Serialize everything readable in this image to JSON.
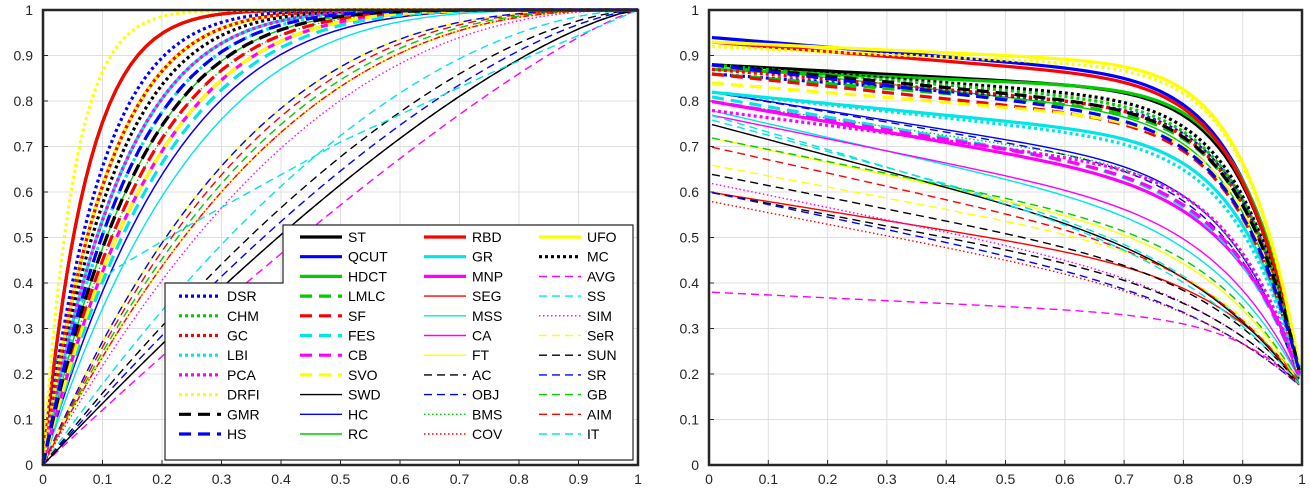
{
  "chart_data": [
    {
      "type": "line",
      "title": "",
      "xlabel": "",
      "ylabel": "",
      "xlim": [
        0,
        1
      ],
      "ylim": [
        0,
        1
      ],
      "x_ticks": [
        "0",
        "0.1",
        "0.2",
        "0.3",
        "0.4",
        "0.5",
        "0.6",
        "0.7",
        "0.8",
        "0.9",
        "1"
      ],
      "y_ticks": [
        "0",
        "0.1",
        "0.2",
        "0.3",
        "0.4",
        "0.5",
        "0.6",
        "0.7",
        "0.8",
        "0.9",
        "1"
      ],
      "grid": true,
      "legend_position": "bottom-right",
      "legend": [
        [
          "ST",
          "QCUT",
          "HDCT",
          "RBD",
          "GR",
          "MNP",
          "UFO",
          "MC",
          "AVG"
        ],
        [
          "DSR",
          "LMLC",
          "SEG",
          "SS"
        ],
        [
          "CHM",
          "SF",
          "MSS",
          "SIM"
        ],
        [
          "GC",
          "FES",
          "CA",
          "SeR"
        ],
        [
          "LBI",
          "CB",
          "FT",
          "SUN"
        ],
        [
          "PCA",
          "SVO",
          "AC",
          "SR"
        ],
        [
          "DRFI",
          "SWD",
          "OBJ",
          "GB"
        ],
        [
          "GMR",
          "HC",
          "BMS",
          "AIM"
        ],
        [
          "HS",
          "RC",
          "COV",
          "IT"
        ]
      ]
    },
    {
      "type": "line",
      "title": "",
      "xlabel": "",
      "ylabel": "",
      "xlim": [
        0,
        1
      ],
      "ylim": [
        0,
        1
      ],
      "x_ticks": [
        "0",
        "0.1",
        "0.2",
        "0.3",
        "0.4",
        "0.5",
        "0.6",
        "0.7",
        "0.8",
        "0.9",
        "1"
      ],
      "y_ticks": [
        "0",
        "0.1",
        "0.2",
        "0.3",
        "0.4",
        "0.5",
        "0.6",
        "0.7",
        "0.8",
        "0.9",
        "1"
      ],
      "grid": true
    }
  ],
  "series": [
    {
      "name": "ST",
      "color": "#000000",
      "style": "solid",
      "bold": true,
      "roc": 0.93,
      "pr_start": 0.88,
      "pr_knee": 0.9,
      "pr_end": 0.17
    },
    {
      "name": "QCUT",
      "color": "#0000ff",
      "style": "solid",
      "bold": true,
      "roc": 0.9,
      "pr_start": 0.94,
      "pr_knee": 0.86,
      "pr_end": 0.17
    },
    {
      "name": "HDCT",
      "color": "#00cc00",
      "style": "solid",
      "bold": true,
      "roc": 0.93,
      "pr_start": 0.87,
      "pr_knee": 0.92,
      "pr_end": 0.18
    },
    {
      "name": "RBD",
      "color": "#ff0000",
      "style": "solid",
      "bold": true,
      "roc": 0.93,
      "pr_start": 0.93,
      "pr_knee": 0.86,
      "pr_end": 0.17
    },
    {
      "name": "GR",
      "color": "#00e5e5",
      "style": "solid",
      "bold": true,
      "roc": 0.88,
      "pr_start": 0.82,
      "pr_knee": 0.8,
      "pr_end": 0.18
    },
    {
      "name": "MNP",
      "color": "#ff00ff",
      "style": "solid",
      "bold": true,
      "roc": 0.84,
      "pr_start": 0.8,
      "pr_knee": 0.62,
      "pr_end": 0.2
    },
    {
      "name": "UFO",
      "color": "#ffff00",
      "style": "solid",
      "bold": true,
      "roc": 0.9,
      "pr_start": 0.93,
      "pr_knee": 0.92,
      "pr_end": 0.18
    },
    {
      "name": "MC",
      "color": "#000000",
      "style": "dotted",
      "bold": true,
      "roc": 0.89,
      "pr_start": 0.88,
      "pr_knee": 0.86,
      "pr_end": 0.17
    },
    {
      "name": "AVG",
      "color": "#ff00ff",
      "style": "dashed",
      "bold": false,
      "roc": 0.55,
      "pr_start": 0.38,
      "pr_knee": 0.7,
      "pr_end": 0.17
    },
    {
      "name": "DSR",
      "color": "#0000ff",
      "style": "dotted",
      "bold": true,
      "roc": 0.91,
      "pr_start": 0.86,
      "pr_knee": 0.86,
      "pr_end": 0.17
    },
    {
      "name": "LMLC",
      "color": "#00cc00",
      "style": "dashed",
      "bold": true,
      "roc": 0.86,
      "pr_start": 0.86,
      "pr_knee": 0.84,
      "pr_end": 0.18
    },
    {
      "name": "SEG",
      "color": "#ff0000",
      "style": "solid",
      "bold": false,
      "roc": 0.72,
      "pr_start": 0.6,
      "pr_knee": 0.5,
      "pr_end": 0.18
    },
    {
      "name": "SS",
      "color": "#00e5e5",
      "style": "dashed",
      "bold": false,
      "roc": 0.65,
      "pr_start": 0.76,
      "pr_knee": 0.4,
      "pr_end": 0.17
    },
    {
      "name": "CHM",
      "color": "#00cc00",
      "style": "dotted",
      "bold": true,
      "roc": 0.88,
      "pr_start": 0.88,
      "pr_knee": 0.84,
      "pr_end": 0.18
    },
    {
      "name": "SF",
      "color": "#ff0000",
      "style": "dashed",
      "bold": true,
      "roc": 0.85,
      "pr_start": 0.86,
      "pr_knee": 0.8,
      "pr_end": 0.17
    },
    {
      "name": "MSS",
      "color": "#00e5e5",
      "style": "solid",
      "bold": false,
      "roc": 0.8,
      "pr_start": 0.78,
      "pr_knee": 0.5,
      "pr_end": 0.18
    },
    {
      "name": "SIM",
      "color": "#ff00ff",
      "style": "dotted",
      "bold": false,
      "roc": 0.7,
      "pr_start": 0.62,
      "pr_knee": 0.4,
      "pr_end": 0.17
    },
    {
      "name": "GC",
      "color": "#ff0000",
      "style": "dotted",
      "bold": true,
      "roc": 0.9,
      "pr_start": 0.87,
      "pr_knee": 0.84,
      "pr_end": 0.17
    },
    {
      "name": "FES",
      "color": "#00e5e5",
      "style": "dashed",
      "bold": true,
      "roc": 0.83,
      "pr_start": 0.81,
      "pr_knee": 0.64,
      "pr_end": 0.18
    },
    {
      "name": "CA",
      "color": "#ff00ff",
      "style": "solid",
      "bold": false,
      "roc": 0.82,
      "pr_start": 0.77,
      "pr_knee": 0.55,
      "pr_end": 0.18
    },
    {
      "name": "SeR",
      "color": "#ffff00",
      "style": "dashed",
      "bold": false,
      "roc": 0.72,
      "pr_start": 0.66,
      "pr_knee": 0.5,
      "pr_end": 0.17
    },
    {
      "name": "LBI",
      "color": "#00e5e5",
      "style": "dotted",
      "bold": true,
      "roc": 0.87,
      "pr_start": 0.82,
      "pr_knee": 0.78,
      "pr_end": 0.17
    },
    {
      "name": "CB",
      "color": "#ff00ff",
      "style": "dashed",
      "bold": true,
      "roc": 0.86,
      "pr_start": 0.8,
      "pr_knee": 0.66,
      "pr_end": 0.18
    },
    {
      "name": "FT",
      "color": "#ffff00",
      "style": "solid",
      "bold": false,
      "roc": 0.75,
      "pr_start": 0.72,
      "pr_knee": 0.5,
      "pr_end": 0.17
    },
    {
      "name": "SUN",
      "color": "#000000",
      "style": "dashed",
      "bold": false,
      "roc": 0.62,
      "pr_start": 0.64,
      "pr_knee": 0.45,
      "pr_end": 0.17
    },
    {
      "name": "PCA",
      "color": "#ff00ff",
      "style": "dotted",
      "bold": true,
      "roc": 0.88,
      "pr_start": 0.78,
      "pr_knee": 0.72,
      "pr_end": 0.18
    },
    {
      "name": "SVO",
      "color": "#ffff00",
      "style": "dashed",
      "bold": true,
      "roc": 0.84,
      "pr_start": 0.84,
      "pr_knee": 0.84,
      "pr_end": 0.17
    },
    {
      "name": "AC",
      "color": "#000000",
      "style": "dashed",
      "bold": false,
      "roc": 0.58,
      "pr_start": 0.6,
      "pr_knee": 0.42,
      "pr_end": 0.17
    },
    {
      "name": "SR",
      "color": "#0000ff",
      "style": "dashed",
      "bold": false,
      "roc": 0.6,
      "pr_start": 0.6,
      "pr_knee": 0.36,
      "pr_end": 0.17
    },
    {
      "name": "DRFI",
      "color": "#ffff00",
      "style": "dotted",
      "bold": true,
      "roc": 0.95,
      "pr_start": 0.92,
      "pr_knee": 0.92,
      "pr_end": 0.18
    },
    {
      "name": "SWD",
      "color": "#000000",
      "style": "solid",
      "bold": false,
      "roc": 0.58,
      "pr_start": 0.75,
      "pr_knee": 0.4,
      "pr_end": 0.17
    },
    {
      "name": "OBJ",
      "color": "#0000ff",
      "style": "dashed",
      "bold": false,
      "roc": 0.75,
      "pr_start": 0.82,
      "pr_knee": 0.66,
      "pr_end": 0.17
    },
    {
      "name": "GB",
      "color": "#00cc00",
      "style": "dashed",
      "bold": false,
      "roc": 0.73,
      "pr_start": 0.72,
      "pr_knee": 0.52,
      "pr_end": 0.17
    },
    {
      "name": "GMR",
      "color": "#000000",
      "style": "dashed",
      "bold": true,
      "roc": 0.86,
      "pr_start": 0.88,
      "pr_knee": 0.82,
      "pr_end": 0.18
    },
    {
      "name": "HC",
      "color": "#0000ff",
      "style": "solid",
      "bold": false,
      "roc": 0.82,
      "pr_start": 0.82,
      "pr_knee": 0.68,
      "pr_end": 0.17
    },
    {
      "name": "BMS",
      "color": "#00cc00",
      "style": "dotted",
      "bold": false,
      "roc": 0.85,
      "pr_start": 0.8,
      "pr_knee": 0.7,
      "pr_end": 0.17
    },
    {
      "name": "AIM",
      "color": "#ff0000",
      "style": "dashed",
      "bold": false,
      "roc": 0.74,
      "pr_start": 0.7,
      "pr_knee": 0.45,
      "pr_end": 0.17
    },
    {
      "name": "HS",
      "color": "#0000ff",
      "style": "dashed",
      "bold": true,
      "roc": 0.87,
      "pr_start": 0.88,
      "pr_knee": 0.78,
      "pr_end": 0.18
    },
    {
      "name": "RC",
      "color": "#00cc00",
      "style": "solid",
      "bold": false,
      "roc": 0.86,
      "pr_start": 0.88,
      "pr_knee": 0.8,
      "pr_end": 0.17
    },
    {
      "name": "COV",
      "color": "#ff0000",
      "style": "dotted",
      "bold": false,
      "roc": 0.72,
      "pr_start": 0.58,
      "pr_knee": 0.38,
      "pr_end": 0.17
    },
    {
      "name": "IT",
      "color": "#00e5e5",
      "style": "dashed",
      "bold": false,
      "roc": 0.45,
      "pr_start": 0.77,
      "pr_knee": 0.36,
      "pr_end": 0.17
    }
  ]
}
